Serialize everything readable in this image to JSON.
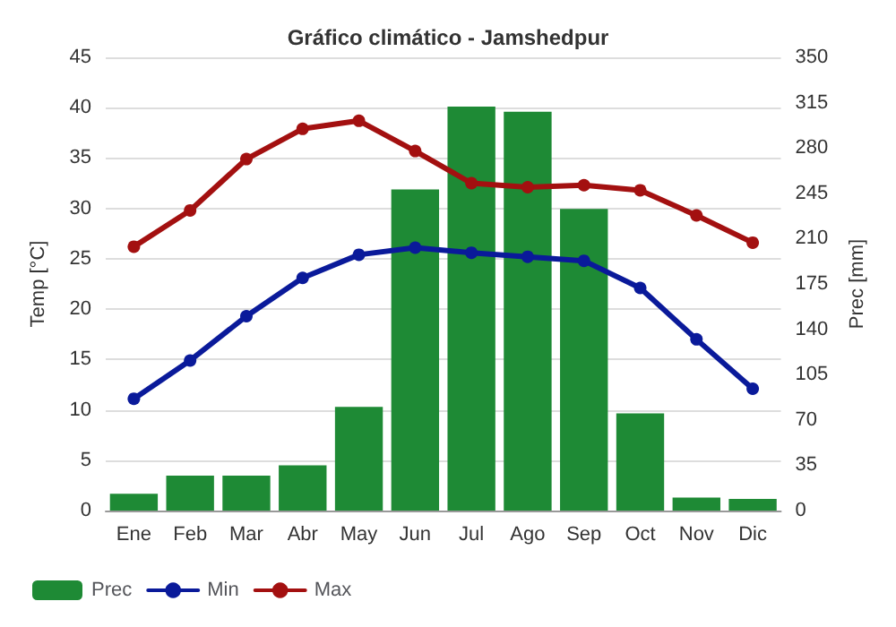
{
  "chart_data": {
    "type": "line",
    "title": "Gráfico climático - Jamshedpur",
    "ylabel": "Temp [°C]",
    "y2label": "Prec [mm]",
    "categories": [
      "Ene",
      "Feb",
      "Mar",
      "Abr",
      "May",
      "Jun",
      "Jul",
      "Ago",
      "Sep",
      "Oct",
      "Nov",
      "Dic"
    ],
    "series": [
      {
        "name": "Prec",
        "type": "bar",
        "axis": "y2",
        "color": "#1e8a35",
        "values": [
          13,
          27,
          27,
          35,
          80,
          248,
          312,
          308,
          233,
          75,
          10,
          9
        ]
      },
      {
        "name": "Min",
        "color": "#0a1a9a",
        "values": [
          11.1,
          14.9,
          19.3,
          23.1,
          25.4,
          26.1,
          25.6,
          25.2,
          24.8,
          22.1,
          17,
          12.1
        ]
      },
      {
        "name": "Max",
        "color": "#a31010",
        "values": [
          26.2,
          29.8,
          34.9,
          37.9,
          38.7,
          35.7,
          32.5,
          32.1,
          32.3,
          31.8,
          29.3,
          26.6
        ]
      }
    ],
    "ylim": [
      0,
      45
    ],
    "yticks": [
      0,
      5,
      10,
      15,
      20,
      25,
      30,
      35,
      40,
      45
    ],
    "y2lim": [
      0,
      350
    ],
    "y2ticks": [
      0,
      35,
      70,
      105,
      140,
      175,
      210,
      245,
      280,
      315,
      350
    ],
    "grid": "y",
    "legend": "bottom",
    "marker": "circle",
    "line_style": "solid"
  }
}
